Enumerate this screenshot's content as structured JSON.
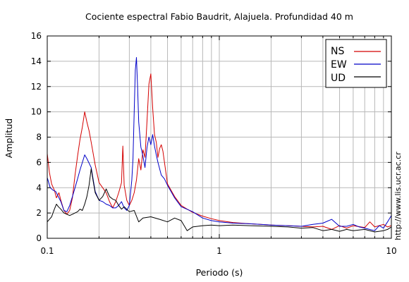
{
  "chart_data": {
    "type": "line",
    "title": "Cociente espectral Fabio Baudrit, Alajuela. Profundidad 40 m",
    "xlabel": "Periodo (s)",
    "ylabel": "Amplitud",
    "x_scale": "log",
    "xlim": [
      0.1,
      10
    ],
    "ylim": [
      0,
      16
    ],
    "grid": true,
    "x_ticks": [
      "0.1",
      "1",
      "10"
    ],
    "y_ticks": [
      "0",
      "2",
      "4",
      "6",
      "8",
      "10",
      "12",
      "14",
      "16"
    ],
    "legend_position": "top-right",
    "side_text": "http://www.lis.ucr.ac.cr",
    "series": [
      {
        "name": "NS",
        "color": "#d40000",
        "points": [
          [
            0.1,
            6.7
          ],
          [
            0.103,
            5.2
          ],
          [
            0.106,
            4.3
          ],
          [
            0.11,
            3.8
          ],
          [
            0.113,
            3.2
          ],
          [
            0.117,
            3.6
          ],
          [
            0.12,
            3.0
          ],
          [
            0.125,
            2.2
          ],
          [
            0.13,
            1.9
          ],
          [
            0.135,
            2.2
          ],
          [
            0.14,
            3.2
          ],
          [
            0.145,
            5.0
          ],
          [
            0.15,
            6.5
          ],
          [
            0.155,
            7.8
          ],
          [
            0.16,
            8.8
          ],
          [
            0.165,
            10.0
          ],
          [
            0.17,
            9.2
          ],
          [
            0.175,
            8.5
          ],
          [
            0.18,
            7.6
          ],
          [
            0.19,
            5.8
          ],
          [
            0.2,
            4.4
          ],
          [
            0.21,
            4.0
          ],
          [
            0.22,
            3.6
          ],
          [
            0.23,
            2.9
          ],
          [
            0.24,
            2.4
          ],
          [
            0.25,
            2.9
          ],
          [
            0.26,
            3.6
          ],
          [
            0.27,
            4.4
          ],
          [
            0.275,
            7.3
          ],
          [
            0.28,
            4.2
          ],
          [
            0.29,
            3.0
          ],
          [
            0.3,
            2.6
          ],
          [
            0.31,
            3.0
          ],
          [
            0.32,
            3.6
          ],
          [
            0.33,
            4.6
          ],
          [
            0.34,
            6.3
          ],
          [
            0.35,
            5.4
          ],
          [
            0.36,
            7.0
          ],
          [
            0.37,
            6.4
          ],
          [
            0.38,
            9.3
          ],
          [
            0.39,
            12.2
          ],
          [
            0.4,
            13.0
          ],
          [
            0.41,
            10.3
          ],
          [
            0.42,
            8.2
          ],
          [
            0.43,
            7.6
          ],
          [
            0.44,
            6.4
          ],
          [
            0.45,
            7.1
          ],
          [
            0.46,
            7.4
          ],
          [
            0.47,
            6.9
          ],
          [
            0.5,
            4.3
          ],
          [
            0.55,
            3.3
          ],
          [
            0.6,
            2.6
          ],
          [
            0.65,
            2.3
          ],
          [
            0.7,
            2.05
          ],
          [
            0.8,
            1.75
          ],
          [
            0.9,
            1.55
          ],
          [
            1.0,
            1.4
          ],
          [
            1.2,
            1.25
          ],
          [
            1.5,
            1.15
          ],
          [
            2.0,
            1.05
          ],
          [
            2.5,
            1.0
          ],
          [
            3.0,
            0.95
          ],
          [
            3.5,
            0.9
          ],
          [
            4.0,
            0.95
          ],
          [
            4.5,
            0.7
          ],
          [
            5.0,
            1.0
          ],
          [
            5.5,
            0.8
          ],
          [
            6.0,
            1.0
          ],
          [
            7.0,
            0.85
          ],
          [
            7.5,
            1.3
          ],
          [
            8.0,
            0.9
          ],
          [
            9.0,
            1.1
          ],
          [
            9.5,
            0.9
          ],
          [
            10.0,
            1.0
          ]
        ]
      },
      {
        "name": "EW",
        "color": "#0000c8",
        "points": [
          [
            0.1,
            4.8
          ],
          [
            0.104,
            4.0
          ],
          [
            0.108,
            3.8
          ],
          [
            0.112,
            3.7
          ],
          [
            0.116,
            3.3
          ],
          [
            0.12,
            2.9
          ],
          [
            0.125,
            2.2
          ],
          [
            0.13,
            2.1
          ],
          [
            0.135,
            2.6
          ],
          [
            0.14,
            3.3
          ],
          [
            0.145,
            4.0
          ],
          [
            0.15,
            4.7
          ],
          [
            0.155,
            5.4
          ],
          [
            0.16,
            6.0
          ],
          [
            0.165,
            6.6
          ],
          [
            0.17,
            6.3
          ],
          [
            0.18,
            5.6
          ],
          [
            0.19,
            3.7
          ],
          [
            0.2,
            3.0
          ],
          [
            0.21,
            2.9
          ],
          [
            0.22,
            2.7
          ],
          [
            0.23,
            2.6
          ],
          [
            0.24,
            2.4
          ],
          [
            0.25,
            2.4
          ],
          [
            0.26,
            2.6
          ],
          [
            0.27,
            2.9
          ],
          [
            0.28,
            2.4
          ],
          [
            0.29,
            2.2
          ],
          [
            0.3,
            2.6
          ],
          [
            0.31,
            4.6
          ],
          [
            0.315,
            6.3
          ],
          [
            0.32,
            10.0
          ],
          [
            0.325,
            13.3
          ],
          [
            0.33,
            14.3
          ],
          [
            0.335,
            12.0
          ],
          [
            0.34,
            9.2
          ],
          [
            0.35,
            7.2
          ],
          [
            0.36,
            6.5
          ],
          [
            0.37,
            5.6
          ],
          [
            0.38,
            7.2
          ],
          [
            0.39,
            8.0
          ],
          [
            0.4,
            7.4
          ],
          [
            0.41,
            8.2
          ],
          [
            0.42,
            7.3
          ],
          [
            0.43,
            6.6
          ],
          [
            0.44,
            6.0
          ],
          [
            0.46,
            5.0
          ],
          [
            0.48,
            4.7
          ],
          [
            0.5,
            4.2
          ],
          [
            0.55,
            3.2
          ],
          [
            0.6,
            2.5
          ],
          [
            0.7,
            2.1
          ],
          [
            0.8,
            1.6
          ],
          [
            0.9,
            1.4
          ],
          [
            1.0,
            1.3
          ],
          [
            1.2,
            1.2
          ],
          [
            1.5,
            1.15
          ],
          [
            2.0,
            1.05
          ],
          [
            2.5,
            1.0
          ],
          [
            3.0,
            0.95
          ],
          [
            3.5,
            1.1
          ],
          [
            4.0,
            1.2
          ],
          [
            4.5,
            1.5
          ],
          [
            5.0,
            0.95
          ],
          [
            5.5,
            0.95
          ],
          [
            6.0,
            1.1
          ],
          [
            6.5,
            0.9
          ],
          [
            7.0,
            0.8
          ],
          [
            8.0,
            0.6
          ],
          [
            8.5,
            1.0
          ],
          [
            9.0,
            0.8
          ],
          [
            9.5,
            1.3
          ],
          [
            10.0,
            1.8
          ]
        ]
      },
      {
        "name": "UD",
        "color": "#000000",
        "points": [
          [
            0.1,
            1.3
          ],
          [
            0.103,
            1.5
          ],
          [
            0.106,
            1.7
          ],
          [
            0.11,
            2.3
          ],
          [
            0.113,
            2.7
          ],
          [
            0.116,
            2.5
          ],
          [
            0.12,
            2.3
          ],
          [
            0.125,
            2.0
          ],
          [
            0.13,
            1.9
          ],
          [
            0.135,
            1.8
          ],
          [
            0.14,
            1.9
          ],
          [
            0.145,
            2.0
          ],
          [
            0.15,
            2.1
          ],
          [
            0.155,
            2.3
          ],
          [
            0.16,
            2.2
          ],
          [
            0.165,
            2.7
          ],
          [
            0.17,
            3.3
          ],
          [
            0.175,
            4.2
          ],
          [
            0.18,
            5.5
          ],
          [
            0.185,
            4.5
          ],
          [
            0.19,
            3.6
          ],
          [
            0.2,
            3.0
          ],
          [
            0.21,
            3.3
          ],
          [
            0.22,
            3.9
          ],
          [
            0.23,
            3.3
          ],
          [
            0.24,
            3.1
          ],
          [
            0.25,
            3.0
          ],
          [
            0.26,
            2.6
          ],
          [
            0.27,
            2.3
          ],
          [
            0.28,
            2.5
          ],
          [
            0.3,
            2.1
          ],
          [
            0.32,
            2.2
          ],
          [
            0.34,
            1.3
          ],
          [
            0.36,
            1.6
          ],
          [
            0.4,
            1.7
          ],
          [
            0.45,
            1.5
          ],
          [
            0.5,
            1.3
          ],
          [
            0.55,
            1.6
          ],
          [
            0.6,
            1.4
          ],
          [
            0.65,
            0.6
          ],
          [
            0.7,
            0.9
          ],
          [
            0.8,
            1.0
          ],
          [
            0.9,
            1.05
          ],
          [
            1.0,
            1.0
          ],
          [
            1.2,
            1.05
          ],
          [
            1.5,
            1.0
          ],
          [
            2.0,
            0.95
          ],
          [
            2.5,
            0.9
          ],
          [
            3.0,
            0.8
          ],
          [
            3.5,
            0.85
          ],
          [
            4.0,
            0.6
          ],
          [
            4.5,
            0.7
          ],
          [
            5.0,
            0.55
          ],
          [
            5.5,
            0.7
          ],
          [
            6.0,
            0.6
          ],
          [
            7.0,
            0.7
          ],
          [
            8.0,
            0.5
          ],
          [
            9.0,
            0.6
          ],
          [
            9.5,
            0.7
          ],
          [
            10.0,
            0.9
          ]
        ]
      }
    ]
  }
}
